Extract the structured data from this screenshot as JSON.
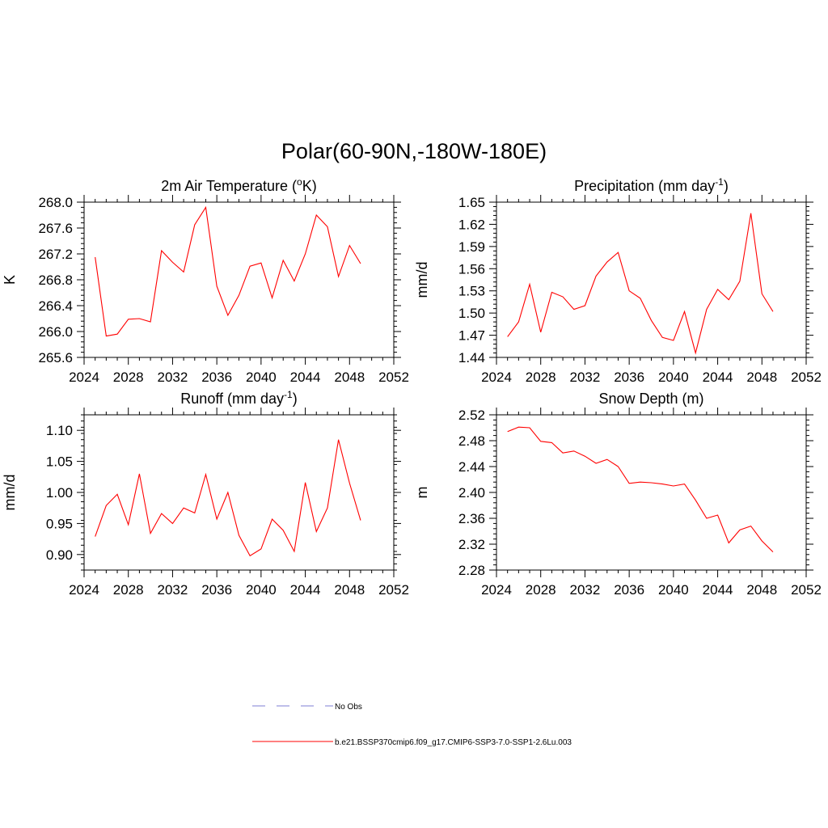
{
  "figure": {
    "title": "Polar(60-90N,-180W-180E)"
  },
  "legend": [
    {
      "label": "No Obs",
      "color": "#9999dd",
      "dash": true
    },
    {
      "label": "b.e21.BSSP370cmip6.f09_g17.CMIP6-SSP3-7.0-SSP1-2.6Lu.003",
      "color": "#ff0000",
      "dash": false
    }
  ],
  "chart_data": [
    {
      "type": "line",
      "title": "2m Air Temperature (",
      "title_sup": "o",
      "title_after": "K)",
      "title_sup2": "",
      "title_tail": "",
      "ylabel": "K",
      "xlim": [
        2024,
        2052
      ],
      "ylim": [
        265.6,
        268.0
      ],
      "xticks": [
        2024,
        2028,
        2032,
        2036,
        2040,
        2044,
        2048,
        2052
      ],
      "yticks": [
        "265.6",
        "266.0",
        "266.4",
        "266.8",
        "267.2",
        "267.6",
        "268.0"
      ],
      "color": "#ff0000",
      "x": [
        2025,
        2026,
        2027,
        2028,
        2029,
        2030,
        2031,
        2032,
        2033,
        2034,
        2035,
        2036,
        2037,
        2038,
        2039,
        2040,
        2041,
        2042,
        2043,
        2044,
        2045,
        2046,
        2047,
        2048,
        2049
      ],
      "y": [
        267.15,
        265.93,
        265.96,
        266.19,
        266.2,
        266.15,
        267.25,
        267.07,
        266.92,
        267.65,
        267.92,
        266.7,
        266.25,
        266.56,
        267.01,
        267.06,
        266.52,
        267.1,
        266.78,
        267.2,
        267.8,
        267.62,
        266.85,
        267.33,
        267.05
      ]
    },
    {
      "type": "line",
      "title": "Precipitation (mm day",
      "title_sup": "-1",
      "title_after": ")",
      "title_sup2": "",
      "title_tail": "",
      "ylabel": "mm/d",
      "xlim": [
        2024,
        2052
      ],
      "ylim": [
        1.44,
        1.65
      ],
      "xticks": [
        2024,
        2028,
        2032,
        2036,
        2040,
        2044,
        2048,
        2052
      ],
      "yticks": [
        "1.44",
        "1.47",
        "1.50",
        "1.53",
        "1.56",
        "1.59",
        "1.62",
        "1.65"
      ],
      "color": "#ff0000",
      "x": [
        2025,
        2026,
        2027,
        2028,
        2029,
        2030,
        2031,
        2032,
        2033,
        2034,
        2035,
        2036,
        2037,
        2038,
        2039,
        2040,
        2041,
        2042,
        2043,
        2044,
        2045,
        2046,
        2047,
        2048,
        2049
      ],
      "y": [
        1.468,
        1.488,
        1.539,
        1.474,
        1.528,
        1.522,
        1.505,
        1.51,
        1.55,
        1.569,
        1.582,
        1.53,
        1.52,
        1.49,
        1.467,
        1.463,
        1.502,
        1.446,
        1.505,
        1.532,
        1.518,
        1.543,
        1.635,
        1.526,
        1.502
      ]
    },
    {
      "type": "line",
      "title": "Runoff (mm day",
      "title_sup": "-1",
      "title_after": ")",
      "title_sup2": "",
      "title_tail": "",
      "ylabel": "mm/d",
      "xlim": [
        2024,
        2052
      ],
      "ylim": [
        0.875,
        1.125
      ],
      "xticks": [
        2024,
        2028,
        2032,
        2036,
        2040,
        2044,
        2048,
        2052
      ],
      "yticks": [
        "0.90",
        "0.95",
        "1.00",
        "1.05",
        "1.10"
      ],
      "ytick_values": [
        0.9,
        0.95,
        1.0,
        1.05,
        1.1
      ],
      "color": "#ff0000",
      "x": [
        2025,
        2026,
        2027,
        2028,
        2029,
        2030,
        2031,
        2032,
        2033,
        2034,
        2035,
        2036,
        2037,
        2038,
        2039,
        2040,
        2041,
        2042,
        2043,
        2044,
        2045,
        2046,
        2047,
        2048,
        2049
      ],
      "y": [
        0.929,
        0.979,
        0.997,
        0.948,
        1.03,
        0.934,
        0.966,
        0.95,
        0.975,
        0.967,
        1.029,
        0.957,
        1.0,
        0.931,
        0.898,
        0.909,
        0.957,
        0.939,
        0.905,
        1.016,
        0.937,
        0.975,
        1.085,
        1.015,
        0.955
      ]
    },
    {
      "type": "line",
      "title": "Snow Depth (m)",
      "title_sup": "",
      "title_after": "",
      "title_sup2": "",
      "title_tail": "",
      "ylabel": "m",
      "xlim": [
        2024,
        2052
      ],
      "ylim": [
        2.28,
        2.52
      ],
      "xticks": [
        2024,
        2028,
        2032,
        2036,
        2040,
        2044,
        2048,
        2052
      ],
      "yticks": [
        "2.28",
        "2.32",
        "2.36",
        "2.40",
        "2.44",
        "2.48",
        "2.52"
      ],
      "color": "#ff0000",
      "x": [
        2025,
        2026,
        2027,
        2028,
        2029,
        2030,
        2031,
        2032,
        2033,
        2034,
        2035,
        2036,
        2037,
        2038,
        2039,
        2040,
        2041,
        2042,
        2043,
        2044,
        2045,
        2046,
        2047,
        2048,
        2049
      ],
      "y": [
        2.494,
        2.501,
        2.5,
        2.479,
        2.477,
        2.461,
        2.464,
        2.456,
        2.445,
        2.451,
        2.44,
        2.414,
        2.416,
        2.415,
        2.413,
        2.41,
        2.413,
        2.388,
        2.36,
        2.365,
        2.322,
        2.342,
        2.348,
        2.325,
        2.308
      ]
    }
  ]
}
